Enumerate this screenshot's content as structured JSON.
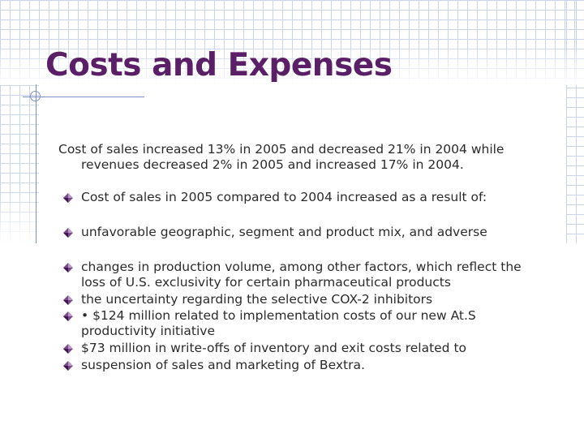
{
  "slide": {
    "title": "Costs and Expenses",
    "intro": {
      "line1": "Cost of sales increased 13% in 2005 and decreased 21% in 2004  while",
      "line2": "revenues decreased 2% in 2005 and increased 17% in 2004."
    },
    "bullets": [
      {
        "lines": [
          "Cost of sales in 2005 compared to 2004 increased as a result of:"
        ]
      },
      {
        "lines": [
          "unfavorable geographic, segment and product mix, and adverse"
        ]
      },
      {
        "lines": [
          "changes in production volume, among other factors, which  reflect the",
          "loss of U.S. exclusivity for certain pharmaceutical products"
        ]
      },
      {
        "lines": [
          "the uncertainty regarding the  selective COX-2 inhibitors"
        ]
      },
      {
        "lines": [
          "• $124 million related to implementation costs of our new At.S",
          "productivity initiative"
        ]
      },
      {
        "lines": [
          " $73 million in write-offs of inventory and exit costs related to"
        ]
      },
      {
        "lines": [
          "suspension of sales and marketing of Bextra."
        ]
      }
    ],
    "bullet_icon": "diamond-bullet-icon",
    "colors": {
      "title": "#5a1f66",
      "body_text": "#2b2b2b",
      "grid": "#c9d3ea",
      "accent_line": "#7d8fc0",
      "bullet": "#5a1f66"
    }
  }
}
